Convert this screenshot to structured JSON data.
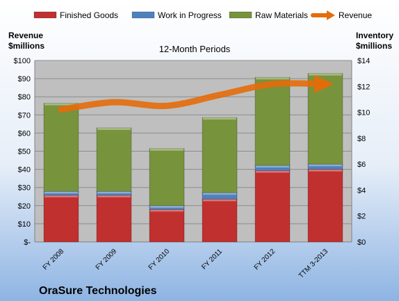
{
  "company": "OraSure Technologies",
  "chart_data": {
    "type": "bar",
    "subtitle": "12-Month Periods",
    "categories": [
      "FY 2008",
      "FY 2009",
      "FY 2010",
      "FY 2011",
      "FY 2012",
      "TTM 3-2013"
    ],
    "stack_series": [
      {
        "name": "Finished Goods",
        "values": [
          3.6,
          3.6,
          2.5,
          3.3,
          5.5,
          5.6
        ],
        "color": "#c0302f"
      },
      {
        "name": "Work in Progress",
        "values": [
          0.3,
          0.3,
          0.3,
          0.5,
          0.4,
          0.4
        ],
        "color": "#4f81bd"
      },
      {
        "name": "Raw Materials",
        "values": [
          6.8,
          4.9,
          4.4,
          5.8,
          6.8,
          7.0
        ],
        "color": "#77933c"
      }
    ],
    "line_series": {
      "name": "Revenue",
      "values": [
        73,
        77,
        75,
        81,
        87,
        87
      ],
      "color": "#e46c0a"
    },
    "left_axis": {
      "label_line1": "Revenue",
      "label_line2": "$millions",
      "min": 0,
      "max": 100,
      "step": 10,
      "tick_labels": [
        "$-",
        "$10",
        "$20",
        "$30",
        "$40",
        "$50",
        "$60",
        "$70",
        "$80",
        "$90",
        "$100"
      ]
    },
    "right_axis": {
      "label_line1": "Inventory",
      "label_line2": "$millions",
      "min": 0,
      "max": 14,
      "step": 2,
      "tick_labels": [
        "$0",
        "$2",
        "$4",
        "$6",
        "$8",
        "$10",
        "$12",
        "$14"
      ]
    },
    "legend_position": "top",
    "grid": true
  },
  "colors": {
    "plot_background": "#bfbfbf",
    "page_gradient_top": "#ffffff",
    "page_gradient_bottom": "#8eb4e3"
  }
}
